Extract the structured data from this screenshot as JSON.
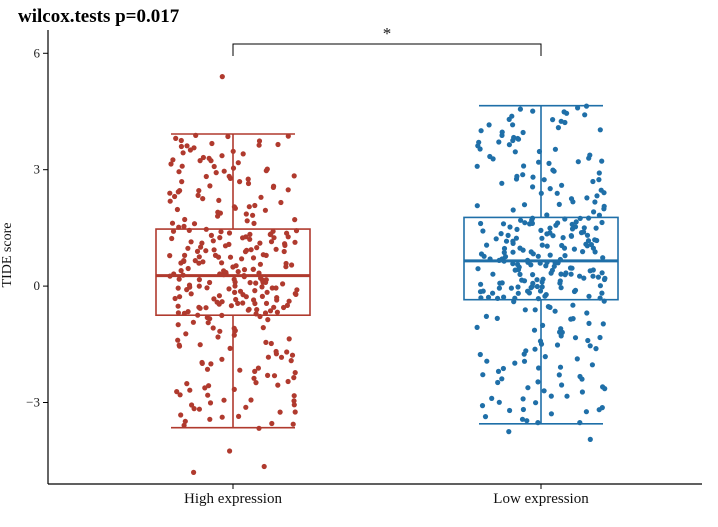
{
  "chart_data": {
    "type": "box",
    "title": "wilcox.tests p=0.017",
    "ylabel": "TIDE score",
    "xlabel": "",
    "ylim": [
      -5.1,
      6.6
    ],
    "yticks": [
      {
        "value": -3,
        "label": "−3"
      },
      {
        "value": 0,
        "label": "0"
      },
      {
        "value": 3,
        "label": "3"
      },
      {
        "value": 6,
        "label": "6"
      }
    ],
    "categories": [
      "High expression",
      "Low expression"
    ],
    "significance": "*",
    "groups": [
      {
        "category": "High expression",
        "color": "#b03a2e",
        "whisker_low": -3.65,
        "q1": -0.75,
        "median": 0.27,
        "q3": 1.47,
        "whisker_high": 3.92,
        "outliers": [
          5.4,
          -4.25,
          -4.65,
          -4.8
        ],
        "n_points": 300
      },
      {
        "category": "Low expression",
        "color": "#1f6fa8",
        "whisker_low": -3.55,
        "q1": -0.35,
        "median": 0.65,
        "q3": 1.77,
        "whisker_high": 4.65,
        "outliers": [
          -3.75,
          -3.95
        ],
        "n_points": 300
      }
    ]
  }
}
